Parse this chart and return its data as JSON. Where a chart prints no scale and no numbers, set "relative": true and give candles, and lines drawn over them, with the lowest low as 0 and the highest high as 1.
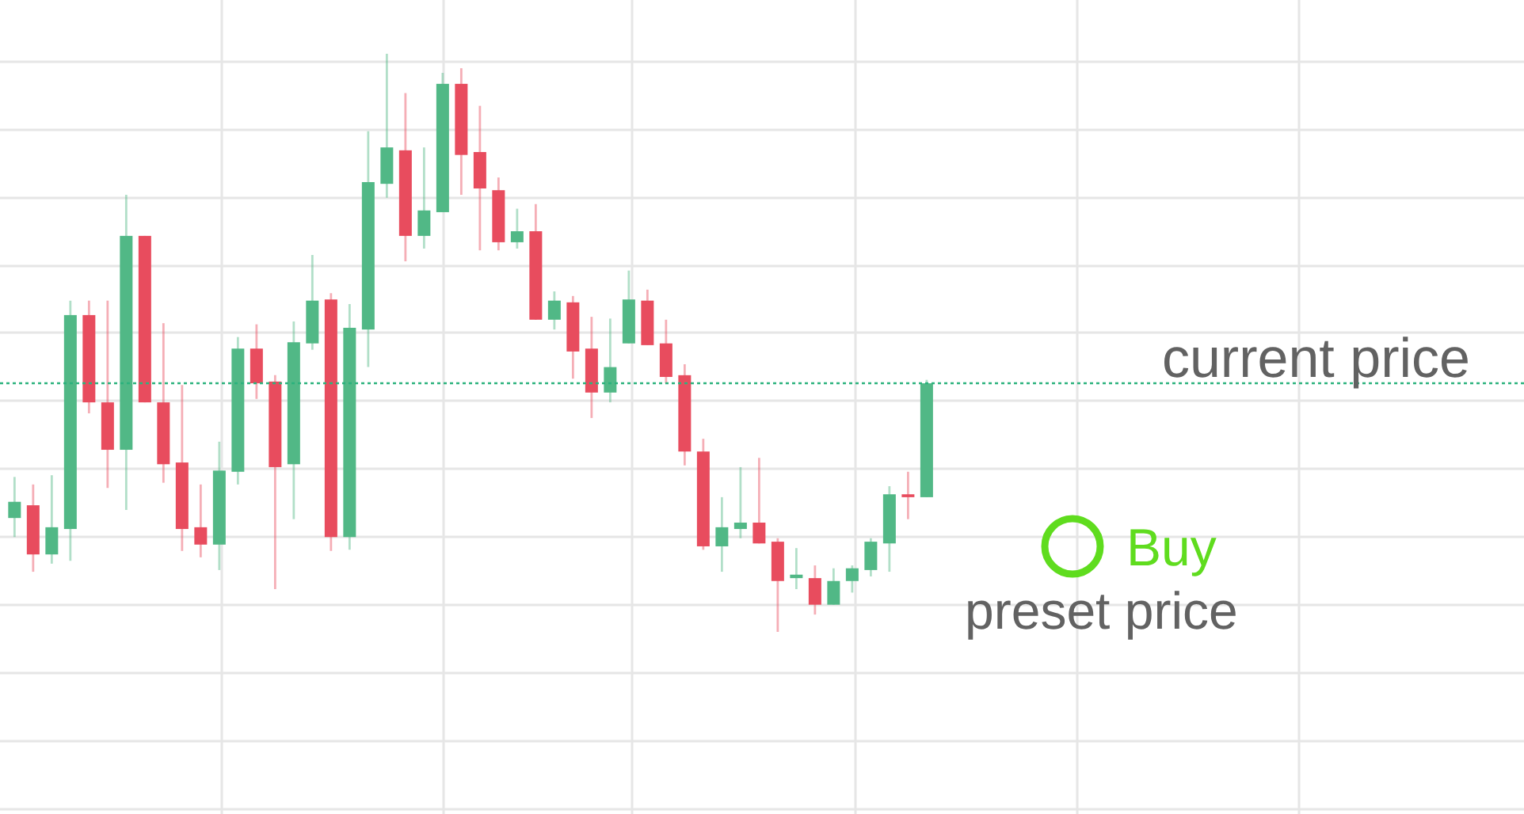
{
  "chart_data": {
    "type": "candlestick",
    "relative": true,
    "categories": [
      null,
      null,
      null,
      null,
      null,
      null,
      null,
      null,
      null,
      null,
      null,
      null,
      null,
      null,
      null,
      null,
      null,
      null,
      null,
      null,
      null,
      null,
      null,
      null,
      null,
      null,
      null,
      null,
      null,
      null,
      null,
      null,
      null,
      null,
      null,
      null,
      null,
      null,
      null,
      null,
      null,
      null,
      null,
      null,
      null,
      null,
      null,
      null,
      null,
      null
    ],
    "ohlc": [
      [
        0.197,
        0.268,
        0.164,
        0.225
      ],
      [
        0.219,
        0.255,
        0.104,
        0.134
      ],
      [
        0.134,
        0.271,
        0.118,
        0.181
      ],
      [
        0.178,
        0.573,
        0.123,
        0.548
      ],
      [
        0.548,
        0.573,
        0.378,
        0.397
      ],
      [
        0.397,
        0.573,
        0.249,
        0.315
      ],
      [
        0.315,
        0.756,
        0.211,
        0.685
      ],
      [
        0.685,
        0.685,
        0.397,
        0.397
      ],
      [
        0.397,
        0.534,
        0.258,
        0.29
      ],
      [
        0.293,
        0.427,
        0.14,
        0.178
      ],
      [
        0.181,
        0.255,
        0.129,
        0.151
      ],
      [
        0.151,
        0.329,
        0.107,
        0.279
      ],
      [
        0.277,
        0.51,
        0.255,
        0.49
      ],
      [
        0.49,
        0.532,
        0.403,
        0.43
      ],
      [
        0.433,
        0.444,
        0.074,
        0.285
      ],
      [
        0.29,
        0.537,
        0.195,
        0.501
      ],
      [
        0.499,
        0.652,
        0.488,
        0.573
      ],
      [
        0.575,
        0.586,
        0.14,
        0.164
      ],
      [
        0.164,
        0.567,
        0.142,
        0.526
      ],
      [
        0.523,
        0.866,
        0.458,
        0.778
      ],
      [
        0.775,
        1,
        0.751,
        0.838
      ],
      [
        0.833,
        0.932,
        0.641,
        0.685
      ],
      [
        0.685,
        0.838,
        0.663,
        0.729
      ],
      [
        0.726,
        0.967,
        0.726,
        0.948
      ],
      [
        0.948,
        0.975,
        0.756,
        0.825
      ],
      [
        0.83,
        0.91,
        0.66,
        0.767
      ],
      [
        0.764,
        0.786,
        0.66,
        0.674
      ],
      [
        0.674,
        0.732,
        0.663,
        0.693
      ],
      [
        0.693,
        0.74,
        0.54,
        0.54
      ],
      [
        0.54,
        0.589,
        0.523,
        0.573
      ],
      [
        0.57,
        0.581,
        0.438,
        0.485
      ],
      [
        0.49,
        0.545,
        0.37,
        0.414
      ],
      [
        0.414,
        0.542,
        0.397,
        0.458
      ],
      [
        0.499,
        0.625,
        0.499,
        0.575
      ],
      [
        0.573,
        0.592,
        0.496,
        0.496
      ],
      [
        0.499,
        0.54,
        0.43,
        0.441
      ],
      [
        0.444,
        0.463,
        0.288,
        0.312
      ],
      [
        0.312,
        0.334,
        0.142,
        0.148
      ],
      [
        0.148,
        0.233,
        0.104,
        0.181
      ],
      [
        0.178,
        0.285,
        0.162,
        0.189
      ],
      [
        0.189,
        0.301,
        0.153,
        0.153
      ],
      [
        0.156,
        0.162,
        0,
        0.088
      ],
      [
        0.093,
        0.145,
        0.074,
        0.099
      ],
      [
        0.093,
        0.115,
        0.03,
        0.047
      ],
      [
        0.047,
        0.11,
        0.047,
        0.088
      ],
      [
        0.088,
        0.115,
        0.068,
        0.11
      ],
      [
        0.107,
        0.162,
        0.096,
        0.156
      ],
      [
        0.153,
        0.252,
        0.104,
        0.238
      ],
      [
        0.238,
        0.277,
        0.195,
        0.233
      ],
      [
        0.233,
        0.436,
        0.233,
        0.43
      ]
    ],
    "colors": [
      "#51b886",
      "#e84c5e",
      "#51b886",
      "#51b886",
      "#e84c5e",
      "#e84c5e",
      "#51b886",
      "#e84c5e",
      "#e84c5e",
      "#e84c5e",
      "#e84c5e",
      "#51b886",
      "#51b886",
      "#e84c5e",
      "#e84c5e",
      "#51b886",
      "#51b886",
      "#e84c5e",
      "#51b886",
      "#51b886",
      "#51b886",
      "#e84c5e",
      "#51b886",
      "#51b886",
      "#e84c5e",
      "#e84c5e",
      "#e84c5e",
      "#51b886",
      "#e84c5e",
      "#51b886",
      "#e84c5e",
      "#e84c5e",
      "#51b886",
      "#51b886",
      "#e84c5e",
      "#e84c5e",
      "#e84c5e",
      "#e84c5e",
      "#51b886",
      "#51b886",
      "#e84c5e",
      "#e84c5e",
      "#51b886",
      "#e84c5e",
      "#51b886",
      "#51b886",
      "#51b886",
      "#51b886",
      "#e84c5e",
      "#51b886"
    ],
    "ref_lines": [
      {
        "axis": "y",
        "value": 0.43,
        "label": "current price",
        "color": "#2cb27d",
        "line_style": "dotted"
      }
    ],
    "annotations": [
      "Buy",
      "preset price"
    ],
    "grid": true,
    "tick_labels": false
  }
}
